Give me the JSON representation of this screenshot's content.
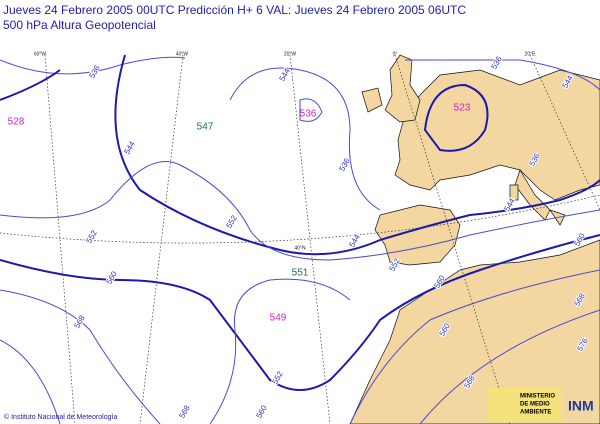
{
  "header": {
    "line1": "Jueves 24 Febrero 2005 00UTC    Predicción H+  6  VAL: Jueves 24 Febrero 2005 06UTC",
    "line2": "500 hPa  Altura Geopotencial"
  },
  "graticule": [
    "60°W",
    "40°W",
    "20°W",
    "0°",
    "20°E",
    "40°N"
  ],
  "contour_labels": [
    "536",
    "544",
    "552",
    "560",
    "568",
    "544",
    "536",
    "552",
    "544",
    "552",
    "560",
    "568",
    "560",
    "536",
    "544",
    "536",
    "544",
    "560",
    "568",
    "576",
    "552",
    "560",
    "568"
  ],
  "centers": [
    {
      "label": "528",
      "kind": "low"
    },
    {
      "label": "547",
      "kind": "high"
    },
    {
      "label": "536",
      "kind": "low"
    },
    {
      "label": "523",
      "kind": "low"
    },
    {
      "label": "551",
      "kind": "high"
    },
    {
      "label": "549",
      "kind": "low"
    }
  ],
  "footer": {
    "credit": "© Instituto Nacional de Meteorología",
    "ministry": [
      "MINISTERIO",
      "DE MEDIO",
      "AMBIENTE"
    ],
    "logo": "INM"
  }
}
